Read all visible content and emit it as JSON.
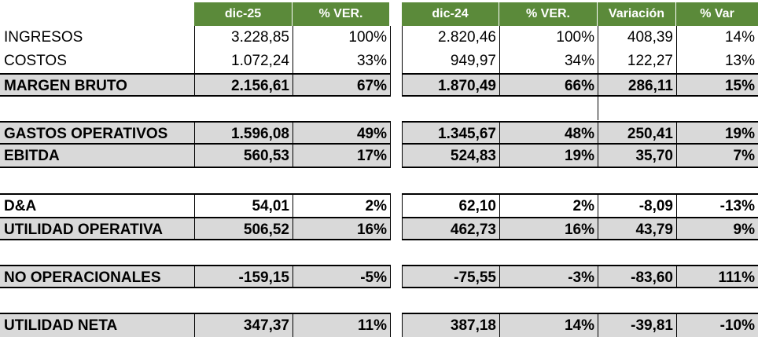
{
  "headers": {
    "group1": [
      "dic-25",
      "% VER."
    ],
    "group2": [
      "dic-24",
      "% VER.",
      "Variación",
      "% Var"
    ]
  },
  "rows": [
    {
      "label": "INGRESOS",
      "v25": "3.228,85",
      "p25": "100%",
      "v24": "2.820,46",
      "p24": "100%",
      "var": "408,39",
      "pvar": "14%"
    },
    {
      "label": "COSTOS",
      "v25": "1.072,24",
      "p25": "33%",
      "v24": "949,97",
      "p24": "34%",
      "var": "122,27",
      "pvar": "13%"
    },
    {
      "label": "MARGEN BRUTO",
      "v25": "2.156,61",
      "p25": "67%",
      "v24": "1.870,49",
      "p24": "66%",
      "var": "286,11",
      "pvar": "15%"
    },
    {
      "label": "GASTOS OPERATIVOS",
      "v25": "1.596,08",
      "p25": "49%",
      "v24": "1.345,67",
      "p24": "48%",
      "var": "250,41",
      "pvar": "19%"
    },
    {
      "label": "EBITDA",
      "v25": "560,53",
      "p25": "17%",
      "v24": "524,83",
      "p24": "19%",
      "var": "35,70",
      "pvar": "7%"
    },
    {
      "label": "D&A",
      "v25": "54,01",
      "p25": "2%",
      "v24": "62,10",
      "p24": "2%",
      "var": "-8,09",
      "pvar": "-13%"
    },
    {
      "label": "UTILIDAD OPERATIVA",
      "v25": "506,52",
      "p25": "16%",
      "v24": "462,73",
      "p24": "16%",
      "var": "43,79",
      "pvar": "9%"
    },
    {
      "label": "NO OPERACIONALES",
      "v25": "-159,15",
      "p25": "-5%",
      "v24": "-75,55",
      "p24": "-3%",
      "var": "-83,60",
      "pvar": "111%"
    },
    {
      "label": "UTILIDAD NETA",
      "v25": "347,37",
      "p25": "11%",
      "v24": "387,18",
      "p24": "14%",
      "var": "-39,81",
      "pvar": "-10%"
    }
  ],
  "colors": {
    "header_bg": "#5b8a3a",
    "header_text": "#ffffff",
    "shade": "#d9d9d9"
  }
}
